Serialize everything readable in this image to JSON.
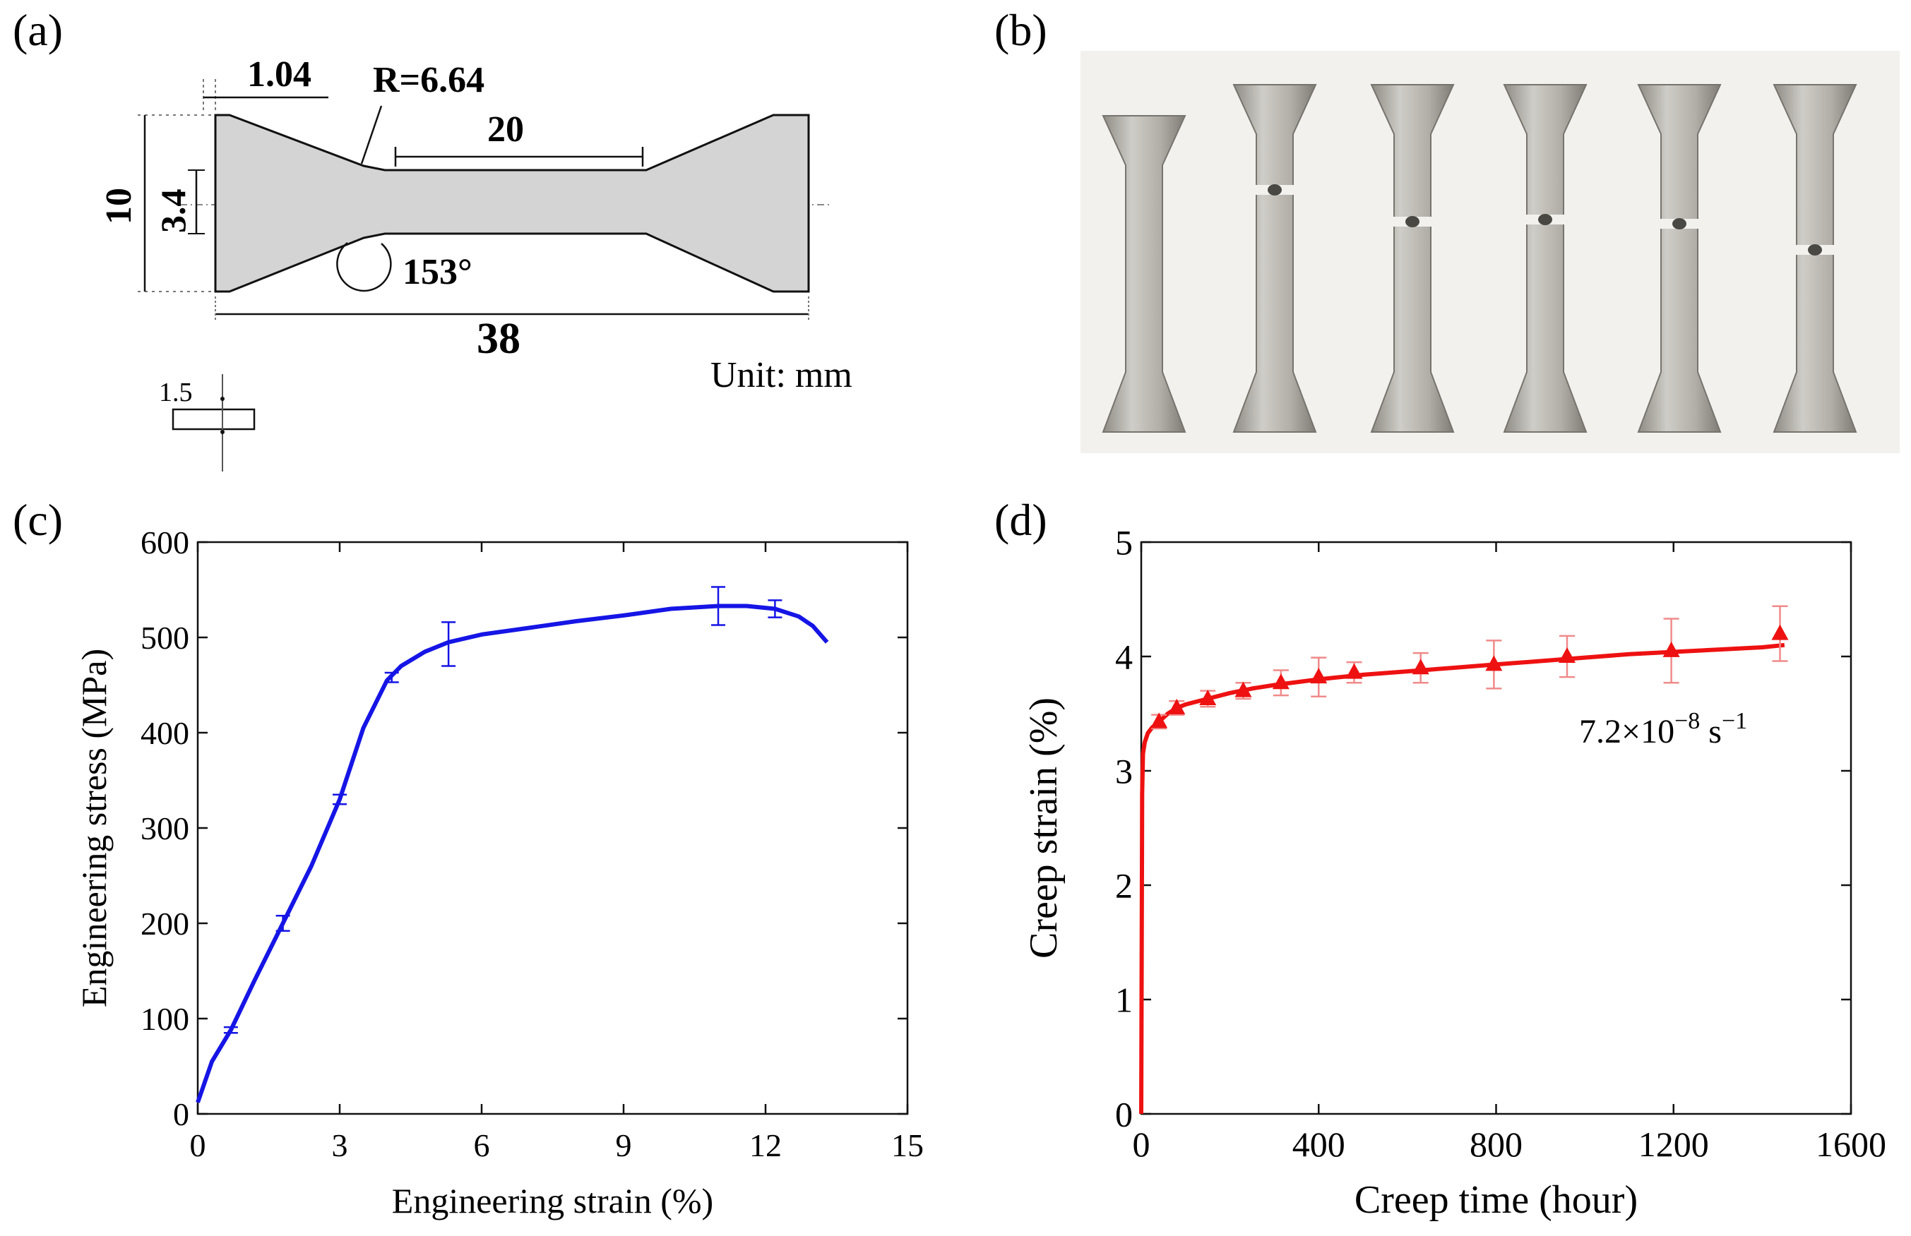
{
  "panels": {
    "a": {
      "label": "(a)",
      "dims": {
        "width_top": "1.04",
        "radius": "R=6.64",
        "gauge_len": "20",
        "height": "10",
        "gauge_width": "3.4",
        "angle": "153°",
        "total_len": "38",
        "thickness": "1.5"
      },
      "unit": "Unit: mm"
    },
    "b": {
      "label": "(b)"
    },
    "c": {
      "label": "(c)"
    },
    "d": {
      "label": "(d)",
      "annotation_main": "7.2×10",
      "annotation_exp1": "−8",
      "annotation_unit": " s",
      "annotation_exp2": "−1"
    }
  },
  "colors": {
    "curve_c": "#1515e6",
    "curve_d": "#ee1111",
    "specimen_fill": "#d4d4d4",
    "metal": "#b9b7b1"
  },
  "chart_data": [
    {
      "type": "line",
      "xlabel": "Engineering strain (%)",
      "ylabel": "Engineering stress (MPa)",
      "xlim": [
        0,
        15
      ],
      "ylim": [
        0,
        600
      ],
      "xticks": [
        0,
        3,
        6,
        9,
        12,
        15
      ],
      "yticks": [
        0,
        100,
        200,
        300,
        400,
        500,
        600
      ],
      "series": [
        {
          "x": [
            0,
            0.3,
            0.7,
            1.2,
            1.8,
            2.4,
            3.0,
            3.5,
            4.0,
            4.3,
            4.8,
            5.3,
            6.0,
            7.0,
            8.0,
            9.0,
            10.0,
            11.0,
            11.6,
            12.2,
            12.7,
            13.0,
            13.3
          ],
          "y": [
            12,
            55,
            88,
            140,
            200,
            260,
            330,
            405,
            455,
            470,
            485,
            495,
            503,
            510,
            517,
            523,
            530,
            533,
            533,
            530,
            522,
            512,
            495
          ]
        }
      ],
      "error_bars": [
        {
          "x": 0.7,
          "y": 88,
          "err": 3
        },
        {
          "x": 1.8,
          "y": 200,
          "err": 8
        },
        {
          "x": 3.0,
          "y": 330,
          "err": 5
        },
        {
          "x": 4.1,
          "y": 458,
          "err": 5
        },
        {
          "x": 5.3,
          "y": 493,
          "err": 23
        },
        {
          "x": 11.0,
          "y": 533,
          "err": 20
        },
        {
          "x": 12.2,
          "y": 530,
          "err": 9
        }
      ]
    },
    {
      "type": "line",
      "xlabel": "Creep time (hour)",
      "ylabel": "Creep strain (%)",
      "xlim": [
        0,
        1600
      ],
      "ylim": [
        0,
        5
      ],
      "xticks": [
        0,
        400,
        800,
        1200,
        1600
      ],
      "yticks": [
        0,
        1,
        2,
        3,
        4,
        5
      ],
      "series": [
        {
          "x": [
            0,
            2,
            4,
            8,
            15,
            25,
            40,
            60,
            80,
            100,
            150,
            200,
            250,
            300,
            400,
            500,
            600,
            700,
            800,
            900,
            1000,
            1100,
            1200,
            1300,
            1400,
            1450
          ],
          "y": [
            0,
            2.8,
            3.15,
            3.25,
            3.33,
            3.38,
            3.43,
            3.5,
            3.55,
            3.58,
            3.63,
            3.68,
            3.72,
            3.75,
            3.8,
            3.84,
            3.87,
            3.9,
            3.93,
            3.96,
            3.99,
            4.02,
            4.04,
            4.06,
            4.08,
            4.1
          ]
        }
      ],
      "markers": [
        {
          "x": 40,
          "y": 3.43,
          "err": 0.06
        },
        {
          "x": 80,
          "y": 3.55,
          "err": 0.06
        },
        {
          "x": 150,
          "y": 3.63,
          "err": 0.07
        },
        {
          "x": 230,
          "y": 3.7,
          "err": 0.07
        },
        {
          "x": 315,
          "y": 3.77,
          "err": 0.11
        },
        {
          "x": 400,
          "y": 3.82,
          "err": 0.17
        },
        {
          "x": 480,
          "y": 3.86,
          "err": 0.09
        },
        {
          "x": 630,
          "y": 3.9,
          "err": 0.13
        },
        {
          "x": 795,
          "y": 3.93,
          "err": 0.21
        },
        {
          "x": 960,
          "y": 4.0,
          "err": 0.18
        },
        {
          "x": 1195,
          "y": 4.05,
          "err": 0.28
        },
        {
          "x": 1440,
          "y": 4.2,
          "err": 0.24
        }
      ]
    }
  ]
}
